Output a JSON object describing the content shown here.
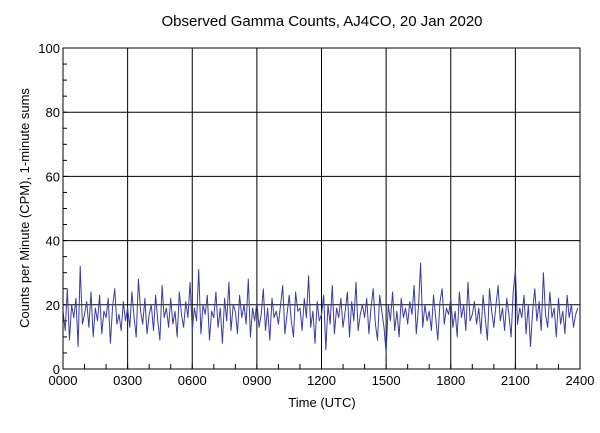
{
  "chart_data": {
    "type": "line",
    "title": "Observed Gamma Counts, AJ4CO, 20 Jan 2020",
    "xlabel": "Time (UTC)",
    "ylabel": "Counts per Minute (CPM), 1-minute sums",
    "xlim": [
      0,
      24
    ],
    "ylim": [
      0,
      100
    ],
    "grid": true,
    "x_tick_labels": [
      "0000",
      "0300",
      "0600",
      "0900",
      "1200",
      "1500",
      "1800",
      "2100",
      "2400"
    ],
    "x_tick_values": [
      0,
      3,
      6,
      9,
      12,
      15,
      18,
      21,
      24
    ],
    "y_tick_labels": [
      "0",
      "20",
      "40",
      "60",
      "80",
      "100"
    ],
    "y_tick_values": [
      0,
      20,
      40,
      60,
      80,
      100
    ],
    "series": [
      {
        "name": "CPM",
        "color": "#3c3c9c",
        "x_step_hours": 0.1,
        "values": [
          18,
          12,
          25,
          9,
          20,
          16,
          22,
          7,
          32,
          14,
          17,
          21,
          13,
          24,
          10,
          19,
          15,
          23,
          11,
          18,
          16,
          22,
          8,
          19,
          25,
          14,
          17,
          12,
          21,
          15,
          19,
          13,
          24,
          16,
          10,
          28,
          18,
          14,
          22,
          11,
          17,
          20,
          12,
          23,
          15,
          9,
          26,
          16,
          19,
          13,
          22,
          14,
          18,
          10,
          24,
          17,
          13,
          21,
          16,
          27,
          12,
          19,
          15,
          31,
          11,
          20,
          17,
          23,
          9,
          18,
          16,
          24,
          13,
          19,
          8,
          22,
          15,
          27,
          12,
          20,
          18,
          11,
          23,
          16,
          20,
          14,
          28,
          10,
          19,
          15,
          21,
          13,
          17,
          25,
          12,
          19,
          9,
          22,
          16,
          18,
          14,
          20,
          26,
          11,
          17,
          23,
          15,
          10,
          24,
          18,
          19,
          12,
          22,
          16,
          29,
          13,
          18,
          8,
          21,
          15,
          17,
          23,
          6,
          20,
          14,
          26,
          11,
          19,
          16,
          22,
          13,
          18,
          24,
          10,
          21,
          15,
          27,
          12,
          17,
          20,
          16,
          22,
          11,
          19,
          25,
          14,
          9,
          23,
          18,
          13,
          5,
          20,
          15,
          24,
          12,
          18,
          10,
          22,
          16,
          19,
          14,
          21,
          17,
          26,
          11,
          19,
          33,
          13,
          20,
          15,
          18,
          12,
          23,
          16,
          9,
          21,
          25,
          14,
          19,
          17,
          22,
          13,
          18,
          10,
          24,
          16,
          20,
          12,
          27,
          15,
          17,
          21,
          14,
          19,
          11,
          23,
          16,
          9,
          25,
          18,
          13,
          20,
          26,
          15,
          19,
          12,
          22,
          17,
          10,
          24,
          31,
          14,
          19,
          16,
          23,
          11,
          20,
          7,
          18,
          25,
          15,
          21,
          12,
          30,
          17,
          13,
          24,
          16,
          19,
          10,
          22,
          14,
          18,
          11,
          23,
          16,
          20,
          13,
          17,
          19
        ]
      }
    ]
  }
}
